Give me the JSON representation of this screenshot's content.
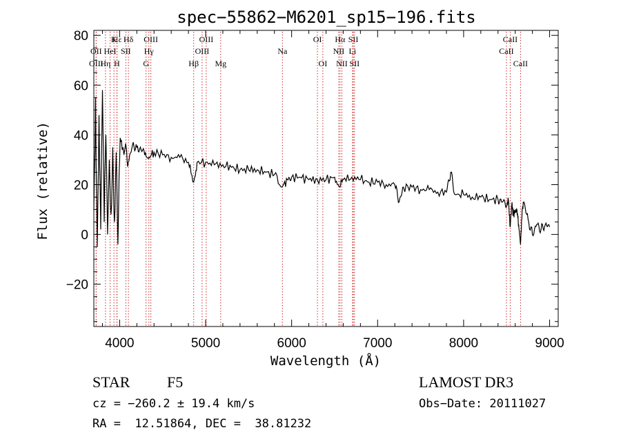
{
  "chart_data": {
    "type": "line",
    "title": "spec−55862−M6201_sp15−196.fits",
    "xlabel": "Wavelength (Å)",
    "ylabel": "Flux (relative)",
    "xlim": [
      3700,
      9100
    ],
    "ylim": [
      -37,
      82
    ],
    "xticks": [
      {
        "value": 4000,
        "label": "4000"
      },
      {
        "value": 5000,
        "label": "5000"
      },
      {
        "value": 6000,
        "label": "6000"
      },
      {
        "value": 7000,
        "label": "7000"
      },
      {
        "value": 8000,
        "label": "8000"
      },
      {
        "value": 9000,
        "label": "9000"
      }
    ],
    "yticks": [
      {
        "value": -20,
        "label": "−20"
      },
      {
        "value": 0,
        "label": "0"
      },
      {
        "value": 20,
        "label": "20"
      },
      {
        "value": 40,
        "label": "40"
      },
      {
        "value": 60,
        "label": "60"
      },
      {
        "value": 80,
        "label": "80"
      }
    ],
    "spectrum": {
      "name": "flux",
      "x": [
        3700,
        3720,
        3740,
        3760,
        3780,
        3800,
        3820,
        3840,
        3860,
        3880,
        3900,
        3920,
        3940,
        3960,
        3980,
        4000,
        4020,
        4050,
        4080,
        4100,
        4150,
        4200,
        4250,
        4300,
        4340,
        4400,
        4500,
        4600,
        4700,
        4800,
        4861,
        4900,
        5000,
        5100,
        5200,
        5300,
        5400,
        5500,
        5600,
        5700,
        5800,
        5890,
        5950,
        6000,
        6100,
        6200,
        6300,
        6400,
        6500,
        6563,
        6600,
        6700,
        6800,
        6900,
        7000,
        7100,
        7200,
        7250,
        7300,
        7400,
        7500,
        7600,
        7700,
        7800,
        7850,
        7900,
        8000,
        8100,
        8200,
        8300,
        8400,
        8450,
        8498,
        8520,
        8542,
        8560,
        8580,
        8600,
        8620,
        8640,
        8662,
        8680,
        8700,
        8750,
        8800,
        8850,
        8900,
        8950,
        9000
      ],
      "y": [
        10,
        55,
        -5,
        48,
        2,
        58,
        5,
        40,
        0,
        30,
        8,
        35,
        5,
        33,
        -4,
        30,
        38,
        32,
        34,
        29,
        36,
        35,
        34,
        33,
        31,
        33,
        32,
        31,
        31,
        29,
        21,
        29,
        29,
        28,
        28,
        27,
        26,
        26,
        26,
        25,
        24,
        19,
        22,
        23,
        23,
        22,
        22,
        22,
        23,
        19,
        22,
        23,
        22,
        21,
        21,
        20,
        20,
        13,
        19,
        19,
        18,
        18,
        17,
        17,
        25,
        16,
        16,
        15,
        15,
        14,
        14,
        13,
        11,
        14,
        3,
        12,
        8,
        9,
        10,
        4,
        -4,
        10,
        13,
        6,
        0,
        4,
        2,
        4,
        3
      ]
    },
    "lines": [
      {
        "label": "Ca II K",
        "text": "K",
        "wavelength": 3934,
        "row": 0
      },
      {
        "label": "Hε",
        "text": "Hε",
        "wavelength": 3970,
        "row": 0
      },
      {
        "label": "Hδ",
        "text": "Hδ",
        "wavelength": 4102,
        "row": 0
      },
      {
        "label": "O III",
        "text": "OIII",
        "wavelength": 4363,
        "row": 0
      },
      {
        "label": "O III",
        "text": "OIII",
        "wavelength": 5007,
        "row": 0
      },
      {
        "label": "O I",
        "text": "OI",
        "wavelength": 6300,
        "row": 0
      },
      {
        "label": "Hα",
        "text": "Hα",
        "wavelength": 6563,
        "row": 0
      },
      {
        "label": "S II",
        "text": "SII",
        "wavelength": 6717,
        "row": 0
      },
      {
        "label": "Ca II",
        "text": "CaII",
        "wavelength": 8542,
        "row": 0
      },
      {
        "label": "O II",
        "text": "OII",
        "wavelength": 3727,
        "row": 1
      },
      {
        "label": "He I",
        "text": "HeI",
        "wavelength": 3889,
        "row": 1
      },
      {
        "label": "S II",
        "text": "SII",
        "wavelength": 4072,
        "row": 1
      },
      {
        "label": "Hγ",
        "text": "Hγ",
        "wavelength": 4340,
        "row": 1
      },
      {
        "label": "O III",
        "text": "OIII",
        "wavelength": 4959,
        "row": 1
      },
      {
        "label": "Na",
        "text": "Na",
        "wavelength": 5893,
        "row": 1
      },
      {
        "label": "N II",
        "text": "NII",
        "wavelength": 6548,
        "row": 1
      },
      {
        "label": "Li",
        "text": "Li",
        "wavelength": 6708,
        "row": 1
      },
      {
        "label": "Ca II",
        "text": "CaII",
        "wavelength": 8498,
        "row": 1
      },
      {
        "label": "O III",
        "text": "OIII",
        "wavelength": 3727,
        "row": 2
      },
      {
        "label": "Hη",
        "text": "Hη",
        "wavelength": 3835,
        "row": 2
      },
      {
        "label": "Ca II H",
        "text": "H",
        "wavelength": 3968,
        "row": 2
      },
      {
        "label": "G",
        "text": "G",
        "wavelength": 4307,
        "row": 2
      },
      {
        "label": "Hβ",
        "text": "Hβ",
        "wavelength": 4861,
        "row": 2
      },
      {
        "label": "Mg",
        "text": "Mg",
        "wavelength": 5175,
        "row": 2
      },
      {
        "label": "O I",
        "text": "OI",
        "wavelength": 6363,
        "row": 2
      },
      {
        "label": "N II",
        "text": "NII",
        "wavelength": 6584,
        "row": 2
      },
      {
        "label": "S II",
        "text": "SII",
        "wavelength": 6731,
        "row": 2
      },
      {
        "label": "Ca II",
        "text": "CaII",
        "wavelength": 8662,
        "row": 2
      }
    ]
  },
  "info": {
    "object_class": "STAR",
    "subclass": "F5",
    "survey": "LAMOST DR3",
    "redshift": "cz = −260.2 ± 19.4 km/s",
    "obs_date": "Obs−Date: 20111027",
    "coords": "RA =  12.51864, DEC =  38.81232"
  },
  "colors": {
    "line_marker": "#cc2222",
    "spectrum": "#000000",
    "axes": "#000000"
  }
}
